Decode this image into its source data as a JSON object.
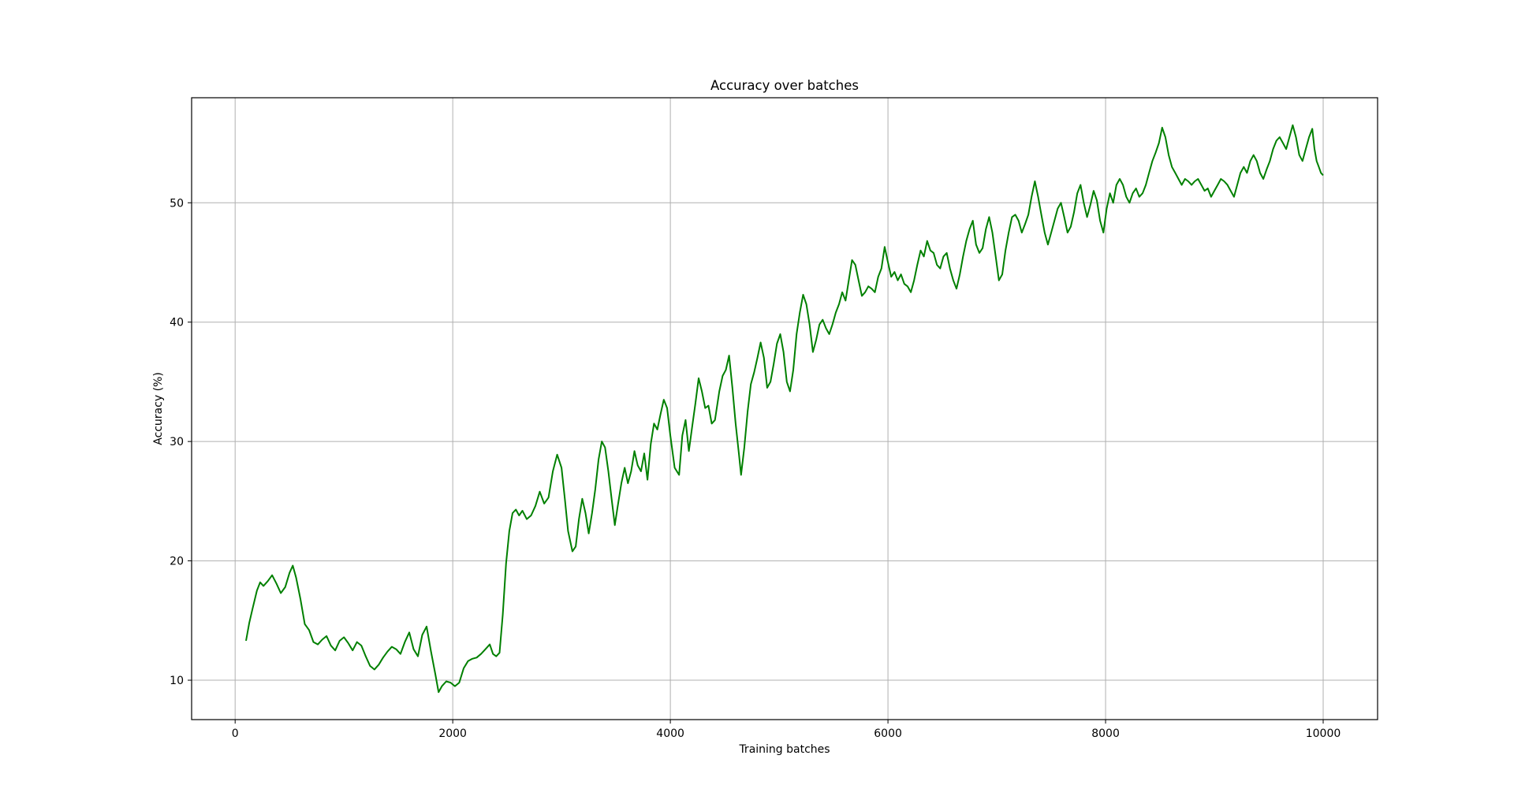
{
  "chart_data": {
    "type": "line",
    "title": "Accuracy over batches",
    "xlabel": "Training batches",
    "ylabel": "Accuracy (%)",
    "xlim": [
      -400,
      10500
    ],
    "ylim": [
      6.7,
      58.8
    ],
    "grid": true,
    "x_ticks": [
      0,
      2000,
      4000,
      6000,
      8000,
      10000
    ],
    "y_ticks": [
      10,
      20,
      30,
      40,
      50
    ],
    "series": [
      {
        "color": "#008000",
        "points": [
          [
            100,
            13.3
          ],
          [
            130,
            14.8
          ],
          [
            160,
            16.0
          ],
          [
            200,
            17.5
          ],
          [
            230,
            18.2
          ],
          [
            260,
            17.9
          ],
          [
            300,
            18.3
          ],
          [
            340,
            18.8
          ],
          [
            380,
            18.1
          ],
          [
            420,
            17.3
          ],
          [
            460,
            17.8
          ],
          [
            500,
            19.0
          ],
          [
            530,
            19.6
          ],
          [
            560,
            18.6
          ],
          [
            600,
            16.8
          ],
          [
            640,
            14.7
          ],
          [
            680,
            14.2
          ],
          [
            720,
            13.2
          ],
          [
            760,
            13.0
          ],
          [
            800,
            13.4
          ],
          [
            840,
            13.7
          ],
          [
            880,
            12.9
          ],
          [
            920,
            12.5
          ],
          [
            960,
            13.3
          ],
          [
            1000,
            13.6
          ],
          [
            1040,
            13.1
          ],
          [
            1080,
            12.5
          ],
          [
            1120,
            13.2
          ],
          [
            1160,
            12.9
          ],
          [
            1200,
            12.0
          ],
          [
            1240,
            11.2
          ],
          [
            1280,
            10.9
          ],
          [
            1320,
            11.3
          ],
          [
            1360,
            11.9
          ],
          [
            1400,
            12.4
          ],
          [
            1440,
            12.8
          ],
          [
            1480,
            12.6
          ],
          [
            1520,
            12.2
          ],
          [
            1560,
            13.2
          ],
          [
            1600,
            14.0
          ],
          [
            1640,
            12.6
          ],
          [
            1680,
            12.0
          ],
          [
            1720,
            13.8
          ],
          [
            1760,
            14.5
          ],
          [
            1800,
            12.4
          ],
          [
            1840,
            10.5
          ],
          [
            1870,
            9.0
          ],
          [
            1900,
            9.5
          ],
          [
            1940,
            9.9
          ],
          [
            1980,
            9.8
          ],
          [
            2020,
            9.5
          ],
          [
            2060,
            9.8
          ],
          [
            2100,
            11.0
          ],
          [
            2140,
            11.6
          ],
          [
            2180,
            11.8
          ],
          [
            2220,
            11.9
          ],
          [
            2260,
            12.2
          ],
          [
            2300,
            12.6
          ],
          [
            2340,
            13.0
          ],
          [
            2370,
            12.2
          ],
          [
            2400,
            12.0
          ],
          [
            2430,
            12.3
          ],
          [
            2460,
            15.5
          ],
          [
            2490,
            19.8
          ],
          [
            2520,
            22.5
          ],
          [
            2550,
            24.0
          ],
          [
            2580,
            24.3
          ],
          [
            2610,
            23.8
          ],
          [
            2640,
            24.2
          ],
          [
            2680,
            23.5
          ],
          [
            2720,
            23.8
          ],
          [
            2760,
            24.6
          ],
          [
            2800,
            25.8
          ],
          [
            2840,
            24.8
          ],
          [
            2880,
            25.3
          ],
          [
            2920,
            27.5
          ],
          [
            2960,
            28.9
          ],
          [
            3000,
            27.8
          ],
          [
            3030,
            25.2
          ],
          [
            3060,
            22.5
          ],
          [
            3100,
            20.8
          ],
          [
            3130,
            21.2
          ],
          [
            3160,
            23.5
          ],
          [
            3190,
            25.2
          ],
          [
            3220,
            24.0
          ],
          [
            3250,
            22.3
          ],
          [
            3280,
            24.0
          ],
          [
            3310,
            26.0
          ],
          [
            3340,
            28.5
          ],
          [
            3370,
            30.0
          ],
          [
            3400,
            29.5
          ],
          [
            3430,
            27.5
          ],
          [
            3460,
            25.2
          ],
          [
            3490,
            23.0
          ],
          [
            3520,
            24.8
          ],
          [
            3550,
            26.5
          ],
          [
            3580,
            27.8
          ],
          [
            3610,
            26.5
          ],
          [
            3640,
            27.5
          ],
          [
            3670,
            29.2
          ],
          [
            3700,
            28.0
          ],
          [
            3730,
            27.5
          ],
          [
            3760,
            29.0
          ],
          [
            3790,
            26.8
          ],
          [
            3820,
            29.8
          ],
          [
            3850,
            31.5
          ],
          [
            3880,
            31.0
          ],
          [
            3910,
            32.3
          ],
          [
            3940,
            33.5
          ],
          [
            3970,
            32.8
          ],
          [
            4000,
            30.5
          ],
          [
            4040,
            27.8
          ],
          [
            4080,
            27.2
          ],
          [
            4110,
            30.5
          ],
          [
            4140,
            31.8
          ],
          [
            4170,
            29.2
          ],
          [
            4200,
            31.2
          ],
          [
            4230,
            33.2
          ],
          [
            4260,
            35.3
          ],
          [
            4290,
            34.2
          ],
          [
            4320,
            32.8
          ],
          [
            4350,
            33.0
          ],
          [
            4380,
            31.5
          ],
          [
            4410,
            31.8
          ],
          [
            4450,
            34.2
          ],
          [
            4480,
            35.5
          ],
          [
            4510,
            36.0
          ],
          [
            4540,
            37.2
          ],
          [
            4570,
            34.5
          ],
          [
            4600,
            31.5
          ],
          [
            4630,
            29.0
          ],
          [
            4650,
            27.2
          ],
          [
            4680,
            29.5
          ],
          [
            4710,
            32.5
          ],
          [
            4740,
            34.8
          ],
          [
            4770,
            35.8
          ],
          [
            4800,
            37.0
          ],
          [
            4830,
            38.3
          ],
          [
            4860,
            37.0
          ],
          [
            4890,
            34.5
          ],
          [
            4920,
            35.0
          ],
          [
            4950,
            36.5
          ],
          [
            4980,
            38.2
          ],
          [
            5010,
            39.0
          ],
          [
            5040,
            37.5
          ],
          [
            5070,
            35.0
          ],
          [
            5100,
            34.2
          ],
          [
            5130,
            36.0
          ],
          [
            5160,
            39.0
          ],
          [
            5190,
            40.8
          ],
          [
            5220,
            42.3
          ],
          [
            5250,
            41.5
          ],
          [
            5280,
            39.8
          ],
          [
            5310,
            37.5
          ],
          [
            5340,
            38.5
          ],
          [
            5370,
            39.8
          ],
          [
            5400,
            40.2
          ],
          [
            5430,
            39.5
          ],
          [
            5460,
            39.0
          ],
          [
            5490,
            39.8
          ],
          [
            5520,
            40.8
          ],
          [
            5550,
            41.5
          ],
          [
            5580,
            42.5
          ],
          [
            5610,
            41.8
          ],
          [
            5640,
            43.5
          ],
          [
            5670,
            45.2
          ],
          [
            5700,
            44.8
          ],
          [
            5730,
            43.5
          ],
          [
            5760,
            42.2
          ],
          [
            5790,
            42.5
          ],
          [
            5820,
            43.0
          ],
          [
            5850,
            42.8
          ],
          [
            5880,
            42.5
          ],
          [
            5910,
            43.8
          ],
          [
            5940,
            44.5
          ],
          [
            5970,
            46.3
          ],
          [
            6000,
            45.0
          ],
          [
            6030,
            43.8
          ],
          [
            6060,
            44.2
          ],
          [
            6090,
            43.5
          ],
          [
            6120,
            44.0
          ],
          [
            6150,
            43.2
          ],
          [
            6180,
            43.0
          ],
          [
            6210,
            42.5
          ],
          [
            6240,
            43.5
          ],
          [
            6270,
            44.8
          ],
          [
            6300,
            46.0
          ],
          [
            6330,
            45.5
          ],
          [
            6360,
            46.8
          ],
          [
            6390,
            46.0
          ],
          [
            6420,
            45.8
          ],
          [
            6450,
            44.8
          ],
          [
            6480,
            44.5
          ],
          [
            6510,
            45.5
          ],
          [
            6540,
            45.8
          ],
          [
            6570,
            44.5
          ],
          [
            6600,
            43.5
          ],
          [
            6630,
            42.8
          ],
          [
            6660,
            44.0
          ],
          [
            6690,
            45.5
          ],
          [
            6720,
            46.8
          ],
          [
            6750,
            47.8
          ],
          [
            6780,
            48.5
          ],
          [
            6810,
            46.5
          ],
          [
            6840,
            45.8
          ],
          [
            6870,
            46.2
          ],
          [
            6900,
            47.8
          ],
          [
            6930,
            48.8
          ],
          [
            6960,
            47.5
          ],
          [
            6990,
            45.5
          ],
          [
            7020,
            43.5
          ],
          [
            7050,
            44.0
          ],
          [
            7080,
            46.0
          ],
          [
            7110,
            47.5
          ],
          [
            7140,
            48.8
          ],
          [
            7170,
            49.0
          ],
          [
            7200,
            48.5
          ],
          [
            7230,
            47.5
          ],
          [
            7260,
            48.2
          ],
          [
            7290,
            49.0
          ],
          [
            7320,
            50.5
          ],
          [
            7350,
            51.8
          ],
          [
            7380,
            50.5
          ],
          [
            7410,
            49.0
          ],
          [
            7440,
            47.5
          ],
          [
            7470,
            46.5
          ],
          [
            7500,
            47.5
          ],
          [
            7530,
            48.5
          ],
          [
            7560,
            49.5
          ],
          [
            7590,
            50.0
          ],
          [
            7620,
            48.8
          ],
          [
            7650,
            47.5
          ],
          [
            7680,
            48.0
          ],
          [
            7710,
            49.2
          ],
          [
            7740,
            50.8
          ],
          [
            7770,
            51.5
          ],
          [
            7800,
            50.0
          ],
          [
            7830,
            48.8
          ],
          [
            7860,
            49.8
          ],
          [
            7890,
            51.0
          ],
          [
            7920,
            50.2
          ],
          [
            7950,
            48.5
          ],
          [
            7980,
            47.5
          ],
          [
            8010,
            49.5
          ],
          [
            8040,
            50.8
          ],
          [
            8070,
            50.0
          ],
          [
            8100,
            51.5
          ],
          [
            8130,
            52.0
          ],
          [
            8160,
            51.5
          ],
          [
            8190,
            50.5
          ],
          [
            8220,
            50.0
          ],
          [
            8250,
            50.8
          ],
          [
            8280,
            51.2
          ],
          [
            8310,
            50.5
          ],
          [
            8340,
            50.8
          ],
          [
            8370,
            51.5
          ],
          [
            8400,
            52.5
          ],
          [
            8430,
            53.5
          ],
          [
            8460,
            54.2
          ],
          [
            8490,
            55.0
          ],
          [
            8520,
            56.3
          ],
          [
            8550,
            55.5
          ],
          [
            8580,
            54.0
          ],
          [
            8610,
            53.0
          ],
          [
            8640,
            52.5
          ],
          [
            8670,
            52.0
          ],
          [
            8700,
            51.5
          ],
          [
            8730,
            52.0
          ],
          [
            8760,
            51.8
          ],
          [
            8790,
            51.5
          ],
          [
            8820,
            51.8
          ],
          [
            8850,
            52.0
          ],
          [
            8880,
            51.5
          ],
          [
            8910,
            51.0
          ],
          [
            8940,
            51.2
          ],
          [
            8970,
            50.5
          ],
          [
            9000,
            51.0
          ],
          [
            9030,
            51.5
          ],
          [
            9060,
            52.0
          ],
          [
            9090,
            51.8
          ],
          [
            9120,
            51.5
          ],
          [
            9150,
            51.0
          ],
          [
            9180,
            50.5
          ],
          [
            9210,
            51.5
          ],
          [
            9240,
            52.5
          ],
          [
            9270,
            53.0
          ],
          [
            9300,
            52.5
          ],
          [
            9330,
            53.5
          ],
          [
            9360,
            54.0
          ],
          [
            9390,
            53.5
          ],
          [
            9420,
            52.5
          ],
          [
            9450,
            52.0
          ],
          [
            9480,
            52.8
          ],
          [
            9510,
            53.5
          ],
          [
            9540,
            54.5
          ],
          [
            9570,
            55.2
          ],
          [
            9600,
            55.5
          ],
          [
            9630,
            55.0
          ],
          [
            9660,
            54.5
          ],
          [
            9690,
            55.5
          ],
          [
            9720,
            56.5
          ],
          [
            9750,
            55.5
          ],
          [
            9780,
            54.0
          ],
          [
            9810,
            53.5
          ],
          [
            9840,
            54.5
          ],
          [
            9870,
            55.5
          ],
          [
            9900,
            56.2
          ],
          [
            9920,
            54.5
          ],
          [
            9940,
            53.5
          ],
          [
            9960,
            53.0
          ],
          [
            9980,
            52.5
          ],
          [
            10000,
            52.3
          ]
        ]
      }
    ]
  }
}
